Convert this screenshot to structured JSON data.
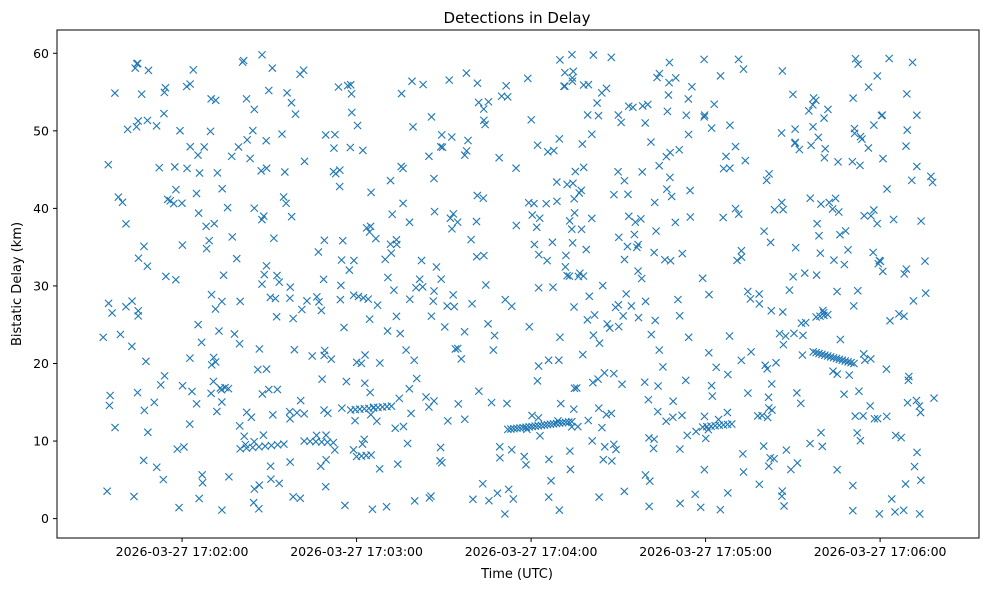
{
  "chart_data": {
    "type": "scatter",
    "title": "Detections in Delay",
    "xlabel": "Time (UTC)",
    "ylabel": "Bistatic Delay (km)",
    "marker": "x",
    "color": "#1f77b4",
    "grid": false,
    "legend": "none",
    "xlim": [
      "2026-03-27 17:01:17",
      "2026-03-27 17:06:34"
    ],
    "ylim": [
      -2.5,
      63
    ],
    "xticks": [
      "2026-03-27 17:02:00",
      "2026-03-27 17:03:00",
      "2026-03-27 17:04:00",
      "2026-03-27 17:05:00",
      "2026-03-27 17:06:00"
    ],
    "yticks": [
      0,
      10,
      20,
      30,
      40,
      50,
      60
    ],
    "x_start": "2026-03-27 17:01:32",
    "x_end": "2026-03-27 17:06:19",
    "random_detection_count": 780,
    "tracks": [
      {
        "x0": "2026-03-27 17:02:20",
        "y0": 9.0,
        "x1": "2026-03-27 17:02:35",
        "y1": 9.6,
        "n": 8
      },
      {
        "x0": "2026-03-27 17:02:37",
        "y0": 13.8,
        "x1": "2026-03-27 17:02:42",
        "y1": 13.5,
        "n": 3
      },
      {
        "x0": "2026-03-27 17:02:42",
        "y0": 10.0,
        "x1": "2026-03-27 17:02:52",
        "y1": 9.8,
        "n": 6
      },
      {
        "x0": "2026-03-27 17:02:58",
        "y0": 14.0,
        "x1": "2026-03-27 17:03:12",
        "y1": 14.5,
        "n": 10
      },
      {
        "x0": "2026-03-27 17:03:00",
        "y0": 8.0,
        "x1": "2026-03-27 17:03:05",
        "y1": 8.2,
        "n": 4
      },
      {
        "x0": "2026-03-27 17:02:59",
        "y0": 28.8,
        "x1": "2026-03-27 17:03:04",
        "y1": 28.3,
        "n": 4
      },
      {
        "x0": "2026-03-27 17:03:52",
        "y0": 11.5,
        "x1": "2026-03-27 17:04:14",
        "y1": 12.5,
        "n": 22
      },
      {
        "x0": "2026-03-27 17:04:59",
        "y0": 11.8,
        "x1": "2026-03-27 17:05:09",
        "y1": 12.2,
        "n": 8
      },
      {
        "x0": "2026-03-27 17:05:37",
        "y0": 21.5,
        "x1": "2026-03-27 17:05:51",
        "y1": 20.0,
        "n": 15
      },
      {
        "x0": "2026-03-27 17:05:38",
        "y0": 26.0,
        "x1": "2026-03-27 17:05:42",
        "y1": 26.3,
        "n": 4
      }
    ]
  }
}
